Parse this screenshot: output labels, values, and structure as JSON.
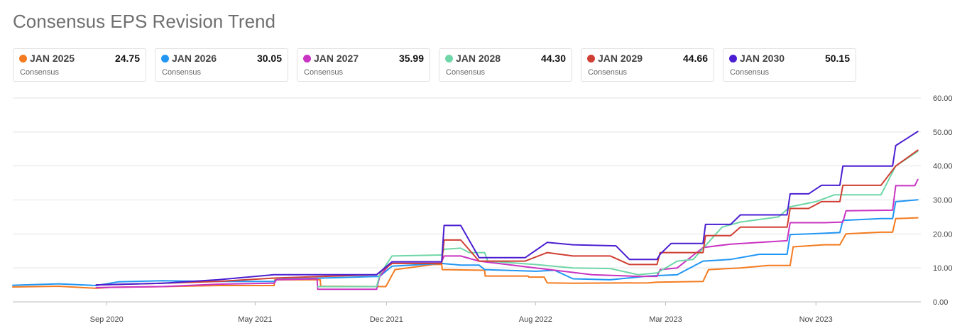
{
  "title": "Consensus EPS Revision Trend",
  "chart_data": {
    "type": "line",
    "title": "Consensus EPS Revision Trend",
    "xlabel": "",
    "ylabel": "",
    "x_ticks": [
      "Sep 2020",
      "May 2021",
      "Dec 2021",
      "Aug 2022",
      "Mar 2023",
      "Nov 2023"
    ],
    "y_ticks": [
      "0.00",
      "10.00",
      "20.00",
      "30.00",
      "40.00",
      "50.00",
      "60.00"
    ],
    "ylim": [
      0,
      60
    ],
    "xlim": [
      "2020-04-01",
      "2024-04-20"
    ],
    "grid": "horizontal",
    "legend_position": "top",
    "series": [
      {
        "name": "JAN 2025",
        "sub": "Consensus",
        "value_label": "24.75",
        "color": "#f47b20",
        "points": [
          [
            "2020-04-01",
            4.4
          ],
          [
            "2020-06-15",
            4.6
          ],
          [
            "2020-08-15",
            4.0
          ],
          [
            "2020-09-10",
            4.3
          ],
          [
            "2020-12-01",
            4.5
          ],
          [
            "2021-03-01",
            4.8
          ],
          [
            "2021-06-01",
            4.8
          ],
          [
            "2021-06-02",
            6.5
          ],
          [
            "2021-08-15",
            6.5
          ],
          [
            "2021-08-16",
            4.6
          ],
          [
            "2021-11-30",
            4.5
          ],
          [
            "2021-12-15",
            9.5
          ],
          [
            "2022-02-15",
            11.0
          ],
          [
            "2022-03-01",
            11.0
          ],
          [
            "2022-03-02",
            9.5
          ],
          [
            "2022-05-10",
            9.3
          ],
          [
            "2022-05-11",
            7.6
          ],
          [
            "2022-07-20",
            7.6
          ],
          [
            "2022-07-21",
            7.3
          ],
          [
            "2022-08-15",
            7.3
          ],
          [
            "2022-08-20",
            5.6
          ],
          [
            "2022-10-01",
            5.5
          ],
          [
            "2023-02-01",
            5.6
          ],
          [
            "2023-02-15",
            5.8
          ],
          [
            "2023-05-01",
            6.0
          ],
          [
            "2023-05-10",
            9.5
          ],
          [
            "2023-07-01",
            10.0
          ],
          [
            "2023-08-15",
            10.7
          ],
          [
            "2023-09-20",
            10.7
          ],
          [
            "2023-09-25",
            16.2
          ],
          [
            "2023-11-15",
            16.8
          ],
          [
            "2023-12-10",
            16.8
          ],
          [
            "2023-12-20",
            20.0
          ],
          [
            "2024-02-15",
            20.5
          ],
          [
            "2024-03-05",
            20.5
          ],
          [
            "2024-03-10",
            24.5
          ],
          [
            "2024-04-15",
            24.75
          ]
        ]
      },
      {
        "name": "JAN 2026",
        "sub": "Consensus",
        "value_label": "30.05",
        "color": "#2196f3",
        "points": [
          [
            "2020-04-01",
            4.9
          ],
          [
            "2020-06-15",
            5.3
          ],
          [
            "2020-08-15",
            4.8
          ],
          [
            "2020-09-20",
            5.9
          ],
          [
            "2020-12-01",
            6.2
          ],
          [
            "2021-03-01",
            6.0
          ],
          [
            "2021-06-01",
            6.0
          ],
          [
            "2021-06-05",
            6.6
          ],
          [
            "2021-11-20",
            7.5
          ],
          [
            "2021-12-10",
            10.5
          ],
          [
            "2022-03-01",
            11.3
          ],
          [
            "2022-04-01",
            10.8
          ],
          [
            "2022-05-01",
            10.8
          ],
          [
            "2022-05-10",
            9.5
          ],
          [
            "2022-08-01",
            9.0
          ],
          [
            "2022-09-01",
            9.3
          ],
          [
            "2022-10-01",
            6.8
          ],
          [
            "2022-12-01",
            6.5
          ],
          [
            "2023-02-01",
            7.6
          ],
          [
            "2023-03-20",
            8.0
          ],
          [
            "2023-05-01",
            12.0
          ],
          [
            "2023-06-15",
            12.5
          ],
          [
            "2023-08-01",
            14.0
          ],
          [
            "2023-09-15",
            14.0
          ],
          [
            "2023-09-20",
            19.8
          ],
          [
            "2023-11-15",
            20.2
          ],
          [
            "2023-12-10",
            20.4
          ],
          [
            "2023-12-15",
            24.0
          ],
          [
            "2024-02-15",
            24.5
          ],
          [
            "2024-03-05",
            24.5
          ],
          [
            "2024-03-10",
            29.5
          ],
          [
            "2024-04-15",
            30.05
          ]
        ]
      },
      {
        "name": "JAN 2027",
        "sub": "Consensus",
        "value_label": "35.99",
        "color": "#c934c2",
        "points": [
          [
            "2020-08-15",
            4.2
          ],
          [
            "2020-12-01",
            4.5
          ],
          [
            "2021-03-01",
            5.2
          ],
          [
            "2021-06-01",
            5.5
          ],
          [
            "2021-06-05",
            6.5
          ],
          [
            "2021-08-10",
            6.8
          ],
          [
            "2021-08-11",
            3.7
          ],
          [
            "2021-11-15",
            3.7
          ],
          [
            "2021-11-20",
            7.5
          ],
          [
            "2021-12-10",
            11.8
          ],
          [
            "2022-03-01",
            11.8
          ],
          [
            "2022-03-05",
            13.5
          ],
          [
            "2022-04-01",
            13.5
          ],
          [
            "2022-05-01",
            12.0
          ],
          [
            "2022-08-01",
            10.0
          ],
          [
            "2022-11-01",
            8.0
          ],
          [
            "2023-01-15",
            7.5
          ],
          [
            "2023-02-15",
            7.5
          ],
          [
            "2023-02-20",
            9.5
          ],
          [
            "2023-03-20",
            10.0
          ],
          [
            "2023-05-01",
            16.0
          ],
          [
            "2023-06-15",
            17.0
          ],
          [
            "2023-08-01",
            17.5
          ],
          [
            "2023-09-15",
            18.0
          ],
          [
            "2023-09-20",
            23.3
          ],
          [
            "2023-11-15",
            23.3
          ],
          [
            "2023-12-15",
            23.5
          ],
          [
            "2023-12-20",
            26.8
          ],
          [
            "2024-03-05",
            27.0
          ],
          [
            "2024-03-10",
            34.2
          ],
          [
            "2024-04-10",
            34.2
          ],
          [
            "2024-04-15",
            35.99
          ]
        ]
      },
      {
        "name": "JAN 2028",
        "sub": "Consensus",
        "value_label": "44.30",
        "color": "#6fd6a8",
        "points": [
          [
            "2021-08-11",
            4.5
          ],
          [
            "2021-11-15",
            4.5
          ],
          [
            "2021-11-20",
            8.0
          ],
          [
            "2021-12-10",
            13.5
          ],
          [
            "2022-03-01",
            13.8
          ],
          [
            "2022-03-05",
            15.5
          ],
          [
            "2022-04-01",
            15.8
          ],
          [
            "2022-04-15",
            14.5
          ],
          [
            "2022-05-10",
            14.5
          ],
          [
            "2022-05-15",
            12.0
          ],
          [
            "2022-08-01",
            11.0
          ],
          [
            "2022-10-01",
            10.0
          ],
          [
            "2022-12-01",
            9.8
          ],
          [
            "2023-01-15",
            8.0
          ],
          [
            "2023-02-15",
            8.5
          ],
          [
            "2023-03-20",
            12.0
          ],
          [
            "2023-04-15",
            12.5
          ],
          [
            "2023-06-01",
            22.0
          ],
          [
            "2023-07-01",
            23.5
          ],
          [
            "2023-09-01",
            25.0
          ],
          [
            "2023-09-20",
            28.0
          ],
          [
            "2023-11-01",
            29.5
          ],
          [
            "2023-12-01",
            31.5
          ],
          [
            "2024-02-15",
            31.5
          ],
          [
            "2024-03-10",
            40.0
          ],
          [
            "2024-04-15",
            44.3
          ]
        ]
      },
      {
        "name": "JAN 2029",
        "sub": "Consensus",
        "value_label": "44.66",
        "color": "#d03f33",
        "points": [
          [
            "2020-08-15",
            5.0
          ],
          [
            "2020-12-01",
            5.5
          ],
          [
            "2021-03-01",
            6.0
          ],
          [
            "2021-06-01",
            7.0
          ],
          [
            "2021-11-15",
            8.0
          ],
          [
            "2021-12-10",
            11.3
          ],
          [
            "2022-03-01",
            11.3
          ],
          [
            "2022-03-05",
            18.2
          ],
          [
            "2022-04-01",
            18.2
          ],
          [
            "2022-05-01",
            12.0
          ],
          [
            "2022-07-15",
            12.0
          ],
          [
            "2022-08-20",
            14.5
          ],
          [
            "2022-10-01",
            13.5
          ],
          [
            "2022-12-01",
            13.5
          ],
          [
            "2023-01-01",
            11.0
          ],
          [
            "2023-02-15",
            11.0
          ],
          [
            "2023-02-20",
            14.5
          ],
          [
            "2023-05-01",
            14.5
          ],
          [
            "2023-05-05",
            19.5
          ],
          [
            "2023-06-15",
            19.5
          ],
          [
            "2023-07-01",
            22.0
          ],
          [
            "2023-09-15",
            22.0
          ],
          [
            "2023-09-20",
            27.5
          ],
          [
            "2023-10-20",
            27.5
          ],
          [
            "2023-11-10",
            29.5
          ],
          [
            "2023-12-10",
            29.5
          ],
          [
            "2023-12-15",
            34.3
          ],
          [
            "2024-02-15",
            34.3
          ],
          [
            "2024-03-10",
            40.0
          ],
          [
            "2024-04-15",
            44.66
          ]
        ]
      },
      {
        "name": "JAN 2030",
        "sub": "Consensus",
        "value_label": "50.15",
        "color": "#4b1fd1",
        "points": [
          [
            "2020-08-15",
            5.0
          ],
          [
            "2020-12-01",
            5.5
          ],
          [
            "2021-03-01",
            6.5
          ],
          [
            "2021-06-01",
            8.0
          ],
          [
            "2021-11-15",
            8.0
          ],
          [
            "2021-12-10",
            11.8
          ],
          [
            "2022-03-01",
            11.8
          ],
          [
            "2022-03-05",
            22.5
          ],
          [
            "2022-04-01",
            22.5
          ],
          [
            "2022-05-01",
            13.0
          ],
          [
            "2022-07-15",
            13.0
          ],
          [
            "2022-08-20",
            17.5
          ],
          [
            "2022-10-01",
            16.8
          ],
          [
            "2022-12-10",
            16.5
          ],
          [
            "2023-01-01",
            12.5
          ],
          [
            "2023-02-15",
            12.5
          ],
          [
            "2023-02-20",
            14.0
          ],
          [
            "2023-03-10",
            17.2
          ],
          [
            "2023-05-01",
            17.2
          ],
          [
            "2023-05-05",
            22.8
          ],
          [
            "2023-06-15",
            22.8
          ],
          [
            "2023-07-01",
            25.6
          ],
          [
            "2023-09-15",
            25.6
          ],
          [
            "2023-09-20",
            31.8
          ],
          [
            "2023-10-20",
            31.8
          ],
          [
            "2023-11-10",
            34.3
          ],
          [
            "2023-12-10",
            34.3
          ],
          [
            "2023-12-15",
            40.0
          ],
          [
            "2024-03-05",
            40.0
          ],
          [
            "2024-03-10",
            46.0
          ],
          [
            "2024-04-15",
            50.15
          ]
        ]
      }
    ]
  }
}
